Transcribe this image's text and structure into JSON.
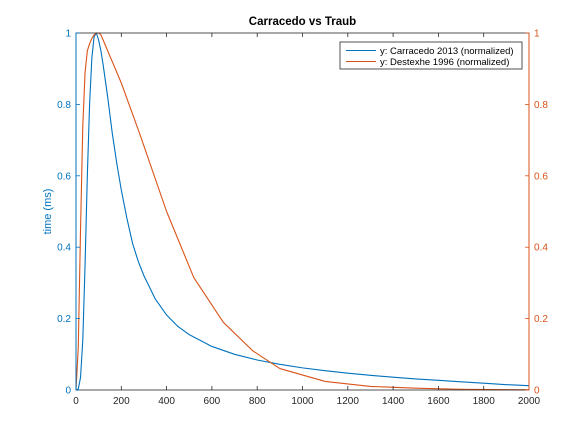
{
  "chart_data": {
    "type": "line",
    "title": "Carracedo vs Traub",
    "xlabel": "",
    "ylabel": "time (ms)",
    "xlim": [
      0,
      2000
    ],
    "ylim": [
      0,
      1
    ],
    "y2lim": [
      0,
      1
    ],
    "x_ticks": [
      0,
      200,
      400,
      600,
      800,
      1000,
      1200,
      1400,
      1600,
      1800,
      2000
    ],
    "y_ticks": [
      0,
      0.2,
      0.4,
      0.6,
      0.8,
      1
    ],
    "y2_ticks": [
      0,
      0.2,
      0.4,
      0.6,
      0.8,
      1
    ],
    "y_tick_labels": [
      "0",
      "0.2",
      "0.4",
      "0.6",
      "0.8",
      "1"
    ],
    "y2_tick_labels": [
      "0",
      "0.2",
      "0.4",
      "0.6",
      "0.8",
      "1"
    ],
    "grid": false,
    "legend_position": "top-right",
    "colors": {
      "left_axis": "#0072BD",
      "right_axis": "#D95319",
      "frame": "#262626"
    },
    "series": [
      {
        "name": "y: Carracedo 2013 (normalized)",
        "axis": "left",
        "color": "#0072BD",
        "x": [
          0,
          10,
          20,
          30,
          40,
          50,
          60,
          70,
          80,
          90,
          100,
          110,
          120,
          140,
          160,
          180,
          200,
          225,
          250,
          275,
          300,
          350,
          400,
          450,
          500,
          600,
          700,
          800,
          900,
          1000,
          1100,
          1200,
          1300,
          1400,
          1500,
          1600,
          1700,
          1800,
          1900,
          2000
        ],
        "y": [
          0,
          0.003,
          0.035,
          0.14,
          0.35,
          0.6,
          0.8,
          0.93,
          0.99,
          1.0,
          0.98,
          0.95,
          0.91,
          0.82,
          0.72,
          0.635,
          0.56,
          0.48,
          0.41,
          0.36,
          0.32,
          0.255,
          0.21,
          0.178,
          0.155,
          0.122,
          0.1,
          0.084,
          0.072,
          0.062,
          0.054,
          0.047,
          0.041,
          0.036,
          0.031,
          0.027,
          0.023,
          0.019,
          0.015,
          0.012
        ]
      },
      {
        "name": "y: Destexhe 1996 (normalized)",
        "axis": "right",
        "color": "#D95319",
        "x": [
          0,
          10,
          20,
          30,
          40,
          50,
          60,
          70,
          80,
          90,
          100,
          110,
          120,
          130,
          160,
          200,
          280,
          400,
          520,
          650,
          780,
          900,
          1100,
          1300,
          1500,
          1700,
          1900,
          2000
        ],
        "y": [
          0,
          0.12,
          0.45,
          0.74,
          0.89,
          0.95,
          0.97,
          0.985,
          0.995,
          1.0,
          1.0,
          0.995,
          0.98,
          0.965,
          0.92,
          0.86,
          0.72,
          0.5,
          0.315,
          0.19,
          0.11,
          0.06,
          0.024,
          0.01,
          0.005,
          0.002,
          0.001,
          0.0005
        ]
      }
    ]
  }
}
